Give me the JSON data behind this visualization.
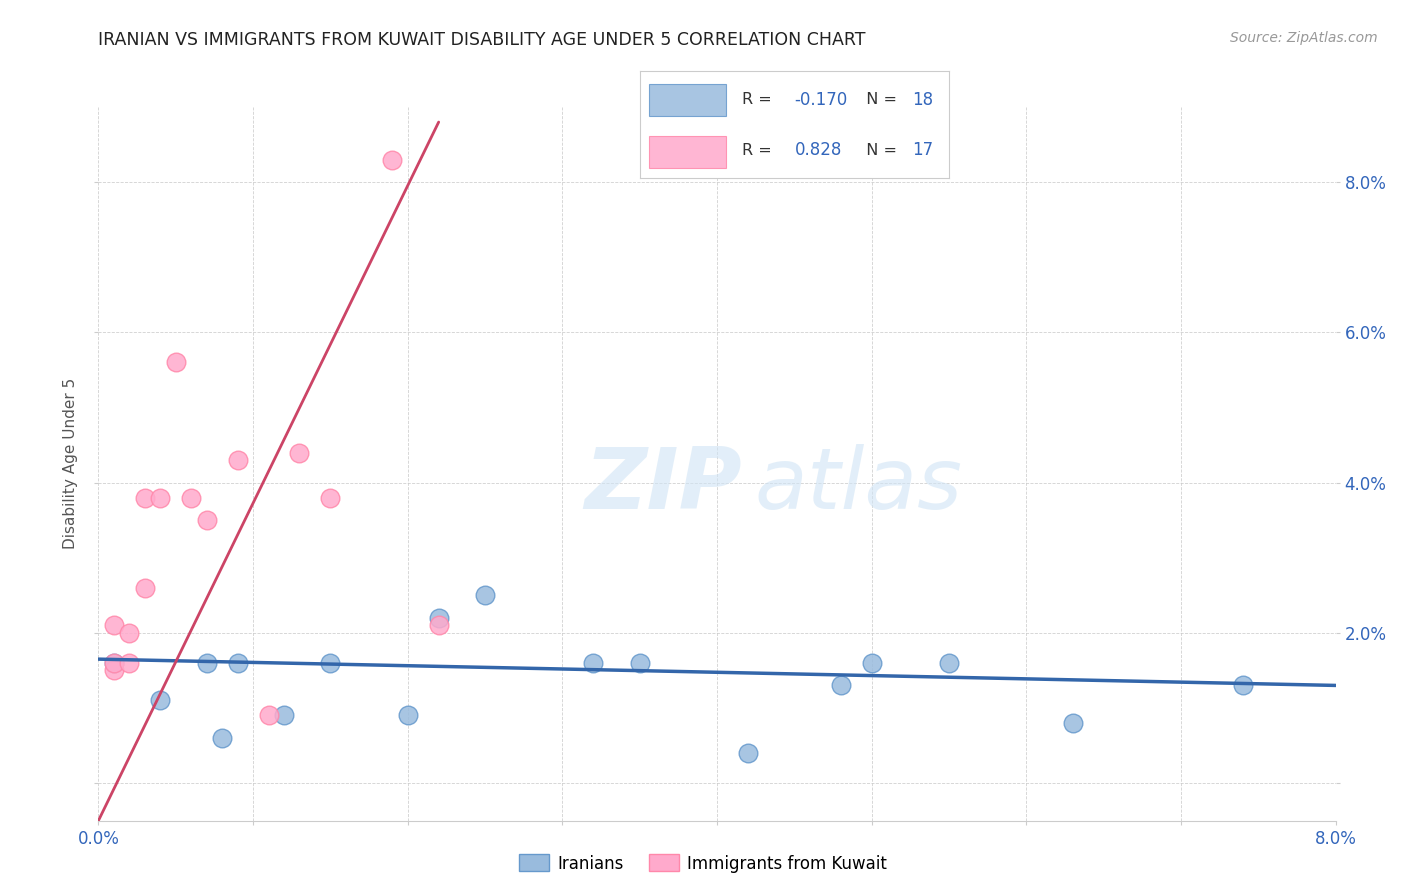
{
  "title": "IRANIAN VS IMMIGRANTS FROM KUWAIT DISABILITY AGE UNDER 5 CORRELATION CHART",
  "source": "Source: ZipAtlas.com",
  "ylabel": "Disability Age Under 5",
  "watermark_zip": "ZIP",
  "watermark_atlas": "atlas",
  "legend_blue_r": "-0.170",
  "legend_blue_n": "18",
  "legend_pink_r": "0.828",
  "legend_pink_n": "17",
  "xmin": 0.0,
  "xmax": 0.08,
  "ymin": -0.005,
  "ymax": 0.09,
  "yticks": [
    0.0,
    0.02,
    0.04,
    0.06,
    0.08
  ],
  "ytick_labels": [
    "",
    "2.0%",
    "4.0%",
    "6.0%",
    "8.0%"
  ],
  "blue_scatter_color": "#99BBDD",
  "pink_scatter_color": "#FFAACC",
  "blue_edge_color": "#6699CC",
  "pink_edge_color": "#FF88AA",
  "blue_line_color": "#3366AA",
  "pink_line_color": "#CC4466",
  "axis_color": "#3366BB",
  "text_color": "#222222",
  "source_color": "#999999",
  "grid_color": "#CCCCCC",
  "watermark_color": "#DDEEFF",
  "iranians_x": [
    0.001,
    0.004,
    0.007,
    0.008,
    0.009,
    0.012,
    0.015,
    0.02,
    0.022,
    0.025,
    0.032,
    0.035,
    0.042,
    0.048,
    0.05,
    0.055,
    0.063,
    0.074
  ],
  "iranians_y": [
    0.016,
    0.011,
    0.016,
    0.006,
    0.016,
    0.009,
    0.016,
    0.009,
    0.022,
    0.025,
    0.016,
    0.016,
    0.004,
    0.013,
    0.016,
    0.016,
    0.008,
    0.013
  ],
  "kuwait_x": [
    0.001,
    0.001,
    0.001,
    0.002,
    0.002,
    0.003,
    0.003,
    0.004,
    0.005,
    0.006,
    0.007,
    0.009,
    0.011,
    0.013,
    0.015,
    0.019,
    0.022
  ],
  "kuwait_y": [
    0.015,
    0.021,
    0.016,
    0.016,
    0.02,
    0.026,
    0.038,
    0.038,
    0.056,
    0.038,
    0.035,
    0.043,
    0.009,
    0.044,
    0.038,
    0.083,
    0.021
  ],
  "blue_trend_x": [
    0.0,
    0.08
  ],
  "blue_trend_y": [
    0.0165,
    0.013
  ],
  "pink_trend_x": [
    0.0,
    0.022
  ],
  "pink_trend_y": [
    -0.005,
    0.088
  ]
}
